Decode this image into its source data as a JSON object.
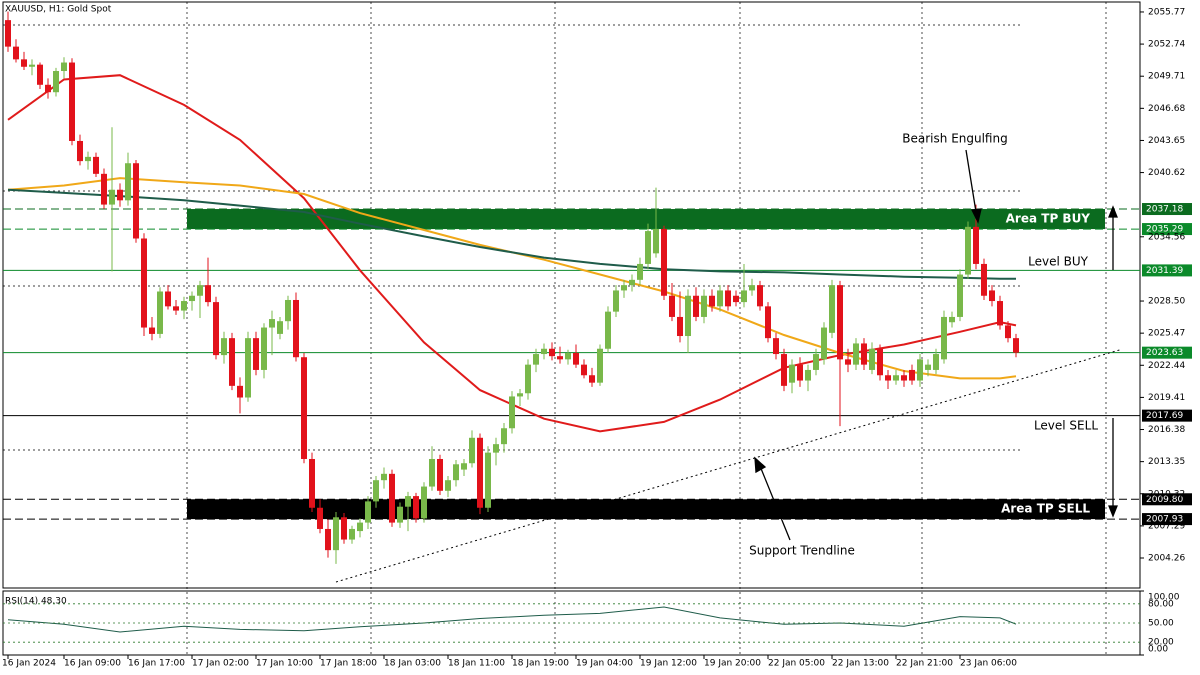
{
  "chart_data": {
    "type": "candlestick",
    "title": "XAUUSD, H1:  Gold Spot",
    "up_color": "#79b84a",
    "down_color": "#e2121b",
    "categories": [
      "16 Jan 2024",
      null,
      null,
      null,
      null,
      null,
      null,
      "16 Jan 09:00",
      null,
      null,
      null,
      null,
      null,
      null,
      null,
      "16 Jan 17:00",
      null,
      null,
      null,
      null,
      null,
      null,
      null,
      "17 Jan 02:00",
      null,
      null,
      null,
      null,
      null,
      null,
      null,
      "17 Jan 10:00",
      null,
      null,
      null,
      null,
      null,
      null,
      null,
      "17 Jan 18:00",
      null,
      null,
      null,
      null,
      null,
      null,
      null,
      "18 Jan 03:00",
      null,
      null,
      null,
      null,
      null,
      null,
      null,
      "18 Jan 11:00",
      null,
      null,
      null,
      null,
      null,
      null,
      null,
      "18 Jan 19:00",
      null,
      null,
      null,
      null,
      null,
      null,
      null,
      "19 Jan 04:00",
      null,
      null,
      null,
      null,
      null,
      null,
      null,
      "19 Jan 12:00",
      null,
      null,
      null,
      null,
      null,
      null,
      null,
      "19 Jan 20:00",
      null,
      null,
      null,
      null,
      null,
      null,
      null,
      "22 Jan 05:00",
      null,
      null,
      null,
      null,
      null,
      null,
      null,
      "22 Jan 13:00",
      null,
      null,
      null,
      null,
      null,
      null,
      null,
      "22 Jan 21:00",
      null,
      null,
      null,
      null,
      null,
      null,
      null,
      "23 Jan 06:00",
      null,
      null,
      null,
      null,
      null,
      null,
      null
    ],
    "ohlc": [
      [
        2055.0,
        2055.8,
        2052.0,
        2052.5
      ],
      [
        2052.5,
        2053.2,
        2051.0,
        2051.3
      ],
      [
        2051.3,
        2052.0,
        2050.3,
        2050.6
      ],
      [
        2050.6,
        2051.3,
        2049.8,
        2050.8
      ],
      [
        2050.8,
        2051.0,
        2048.5,
        2048.9
      ],
      [
        2048.9,
        2049.5,
        2047.6,
        2048.2
      ],
      [
        2048.2,
        2050.5,
        2047.8,
        2050.2
      ],
      [
        2050.2,
        2051.5,
        2049.5,
        2051.0
      ],
      [
        2051.0,
        2051.4,
        2043.2,
        2043.6
      ],
      [
        2043.6,
        2044.2,
        2041.3,
        2041.7
      ],
      [
        2041.7,
        2042.6,
        2040.9,
        2042.1
      ],
      [
        2042.1,
        2042.5,
        2040.2,
        2040.5
      ],
      [
        2040.5,
        2041.0,
        2037.2,
        2037.6
      ],
      [
        2037.6,
        2044.9,
        2031.3,
        2039.0
      ],
      [
        2039.0,
        2039.6,
        2037.4,
        2038.0
      ],
      [
        2038.0,
        2042.5,
        2037.5,
        2041.5
      ],
      [
        2041.5,
        2041.8,
        2034.0,
        2034.4
      ],
      [
        2034.4,
        2034.9,
        2025.2,
        2026.0
      ],
      [
        2026.0,
        2027.0,
        2024.8,
        2025.4
      ],
      [
        2025.4,
        2029.8,
        2025.0,
        2029.4
      ],
      [
        2029.4,
        2030.0,
        2027.7,
        2028.0
      ],
      [
        2028.0,
        2028.6,
        2027.2,
        2027.6
      ],
      [
        2027.6,
        2028.9,
        2026.8,
        2028.5
      ],
      [
        2028.5,
        2029.4,
        2027.6,
        2029.0
      ],
      [
        2029.0,
        2030.4,
        2026.9,
        2030.0
      ],
      [
        2030.0,
        2032.6,
        2028.0,
        2028.4
      ],
      [
        2028.4,
        2028.9,
        2023.0,
        2023.4
      ],
      [
        2023.4,
        2025.6,
        2022.6,
        2025.0
      ],
      [
        2025.0,
        2025.5,
        2020.1,
        2020.5
      ],
      [
        2020.5,
        2021.3,
        2017.9,
        2019.4
      ],
      [
        2019.4,
        2025.6,
        2019.0,
        2025.0
      ],
      [
        2025.0,
        2025.6,
        2021.5,
        2022.0
      ],
      [
        2022.0,
        2026.4,
        2021.2,
        2026.0
      ],
      [
        2026.0,
        2027.6,
        2023.4,
        2026.8
      ],
      [
        2025.4,
        2027.0,
        2024.9,
        2026.6
      ],
      [
        2026.6,
        2029.0,
        2025.8,
        2028.6
      ],
      [
        2028.6,
        2029.3,
        2022.8,
        2023.2
      ],
      [
        2023.2,
        2023.6,
        2013.2,
        2013.6
      ],
      [
        2013.6,
        2014.2,
        2008.6,
        2009.0
      ],
      [
        2009.0,
        2009.8,
        2006.6,
        2007.0
      ],
      [
        2007.0,
        2007.9,
        2004.3,
        2005.0
      ],
      [
        2005.0,
        2008.6,
        2003.7,
        2008.1
      ],
      [
        2008.1,
        2008.5,
        2005.6,
        2006.0
      ],
      [
        2006.0,
        2007.3,
        2005.6,
        2007.0
      ],
      [
        2006.8,
        2008.0,
        2006.2,
        2007.6
      ],
      [
        2007.6,
        2010.1,
        2007.0,
        2009.6
      ],
      [
        2009.6,
        2012.0,
        2009.0,
        2011.6
      ],
      [
        2011.6,
        2012.8,
        2010.8,
        2012.2
      ],
      [
        2012.2,
        2012.6,
        2007.2,
        2007.6
      ],
      [
        2007.6,
        2009.5,
        2007.1,
        2009.1
      ],
      [
        2009.1,
        2010.5,
        2006.8,
        2010.1
      ],
      [
        2010.1,
        2010.4,
        2007.6,
        2008.0
      ],
      [
        2008.0,
        2011.4,
        2007.6,
        2011.0
      ],
      [
        2011.0,
        2014.8,
        2010.6,
        2013.6
      ],
      [
        2013.6,
        2014.0,
        2010.2,
        2010.6
      ],
      [
        2010.6,
        2012.0,
        2010.0,
        2011.6
      ],
      [
        2011.6,
        2013.5,
        2011.0,
        2013.1
      ],
      [
        2012.6,
        2013.6,
        2012.0,
        2013.2
      ],
      [
        2013.2,
        2016.3,
        2012.8,
        2015.6
      ],
      [
        2015.6,
        2016.0,
        2008.4,
        2009.0
      ],
      [
        2009.0,
        2014.8,
        2008.6,
        2014.2
      ],
      [
        2014.2,
        2015.6,
        2013.0,
        2015.0
      ],
      [
        2015.0,
        2017.0,
        2014.2,
        2016.5
      ],
      [
        2016.5,
        2020.0,
        2016.0,
        2019.5
      ],
      [
        2019.5,
        2020.2,
        2018.6,
        2019.8
      ],
      [
        2019.8,
        2023.0,
        2019.2,
        2022.5
      ],
      [
        2022.5,
        2024.0,
        2021.8,
        2023.5
      ],
      [
        2023.5,
        2024.5,
        2023.0,
        2024.0
      ],
      [
        2024.0,
        2024.6,
        2022.9,
        2023.3
      ],
      [
        2023.3,
        2024.2,
        2022.6,
        2023.0
      ],
      [
        2023.0,
        2023.9,
        2022.5,
        2023.6
      ],
      [
        2023.6,
        2024.4,
        2022.2,
        2022.5
      ],
      [
        2022.5,
        2023.0,
        2021.2,
        2021.5
      ],
      [
        2021.5,
        2022.2,
        2020.4,
        2020.8
      ],
      [
        2020.8,
        2024.4,
        2020.5,
        2024.0
      ],
      [
        2024.0,
        2028.0,
        2023.6,
        2027.5
      ],
      [
        2027.5,
        2030.0,
        2027.0,
        2029.5
      ],
      [
        2029.5,
        2030.5,
        2028.8,
        2030.0
      ],
      [
        2030.0,
        2031.0,
        2029.4,
        2030.5
      ],
      [
        2030.5,
        2032.6,
        2030.0,
        2032.0
      ],
      [
        2032.0,
        2035.8,
        2031.5,
        2035.1
      ],
      [
        2033.0,
        2039.2,
        2032.6,
        2035.3
      ],
      [
        2035.3,
        2035.6,
        2028.6,
        2029.0
      ],
      [
        2029.0,
        2030.2,
        2026.6,
        2027.0
      ],
      [
        2027.0,
        2029.4,
        2024.6,
        2025.2
      ],
      [
        2025.2,
        2029.6,
        2023.6,
        2029.0
      ],
      [
        2029.0,
        2029.8,
        2026.6,
        2027.0
      ],
      [
        2027.0,
        2029.6,
        2026.4,
        2029.0
      ],
      [
        2029.0,
        2029.6,
        2027.5,
        2028.0
      ],
      [
        2028.0,
        2030.0,
        2027.5,
        2029.5
      ],
      [
        2029.5,
        2030.0,
        2027.6,
        2028.0
      ],
      [
        2029.0,
        2029.5,
        2028.0,
        2028.4
      ],
      [
        2028.4,
        2032.0,
        2027.9,
        2029.5
      ],
      [
        2029.5,
        2030.6,
        2029.0,
        2030.0
      ],
      [
        2030.0,
        2030.4,
        2027.6,
        2028.0
      ],
      [
        2028.0,
        2028.4,
        2024.6,
        2025.0
      ],
      [
        2025.0,
        2025.5,
        2023.0,
        2023.5
      ],
      [
        2023.5,
        2024.0,
        2020.0,
        2020.5
      ],
      [
        2020.8,
        2023.0,
        2019.8,
        2022.5
      ],
      [
        2022.5,
        2023.2,
        2020.4,
        2021.0
      ],
      [
        2021.0,
        2022.5,
        2020.0,
        2022.0
      ],
      [
        2022.0,
        2024.0,
        2021.5,
        2023.5
      ],
      [
        2023.0,
        2026.5,
        2022.5,
        2026.0
      ],
      [
        2025.5,
        2030.5,
        2025.0,
        2030.0
      ],
      [
        2030.0,
        2030.4,
        2016.7,
        2023.0
      ],
      [
        2023.0,
        2024.0,
        2021.8,
        2022.5
      ],
      [
        2022.5,
        2025.0,
        2022.0,
        2024.5
      ],
      [
        2024.5,
        2025.0,
        2022.0,
        2022.5
      ],
      [
        2022.0,
        2024.6,
        2021.6,
        2024.0
      ],
      [
        2024.0,
        2024.4,
        2021.0,
        2021.5
      ],
      [
        2021.5,
        2022.0,
        2020.2,
        2021.0
      ],
      [
        2021.0,
        2022.0,
        2020.6,
        2021.5
      ],
      [
        2021.5,
        2022.0,
        2020.4,
        2021.0
      ],
      [
        2022.0,
        2022.5,
        2020.6,
        2021.0
      ],
      [
        2021.0,
        2023.5,
        2020.4,
        2023.0
      ],
      [
        2022.0,
        2023.0,
        2021.4,
        2022.5
      ],
      [
        2022.0,
        2024.0,
        2021.6,
        2023.5
      ],
      [
        2023.0,
        2027.6,
        2022.6,
        2027.0
      ],
      [
        2026.5,
        2027.5,
        2026.0,
        2027.0
      ],
      [
        2027.0,
        2031.5,
        2026.6,
        2031.0
      ],
      [
        2031.0,
        2036.0,
        2030.6,
        2035.5
      ],
      [
        2035.5,
        2037.6,
        2031.5,
        2032.0
      ],
      [
        2032.0,
        2032.5,
        2028.6,
        2029.0
      ],
      [
        2029.5,
        2030.0,
        2028.0,
        2028.5
      ],
      [
        2028.5,
        2029.0,
        2025.8,
        2026.2
      ],
      [
        2026.2,
        2026.6,
        2024.6,
        2025.0
      ],
      [
        2025.0,
        2025.4,
        2023.2,
        2023.63
      ]
    ],
    "xlim": [
      -0.625,
      141.5
    ],
    "ylim": [
      2001.43,
      2056.71
    ],
    "yticks": [
      2055.77,
      2052.74,
      2049.71,
      2046.68,
      2043.65,
      2040.62,
      2034.56,
      {
        "value": 2028.5,
        "label": "2028.50"
      },
      2025.47,
      2022.44,
      2019.41,
      2016.38,
      2013.35,
      2010.32,
      2007.29,
      2004.26
    ],
    "series": [
      {
        "color": "#e01b1b",
        "x": [
          0,
          7,
          14,
          22,
          29,
          37,
          44,
          52,
          59,
          67,
          74,
          82,
          89,
          97,
          104,
          112,
          119,
          124,
          126
        ],
        "values": [
          2045.6,
          2049.4,
          2049.8,
          2047.0,
          2043.7,
          2038.2,
          2031.4,
          2024.6,
          2020.1,
          2017.4,
          2016.2,
          2017.1,
          2019.2,
          2022.2,
          2023.4,
          2024.4,
          2025.6,
          2026.5,
          2026.2
        ]
      },
      {
        "color": "#f0a818",
        "x": [
          0,
          7,
          14,
          22,
          29,
          37,
          44,
          52,
          59,
          67,
          74,
          82,
          89,
          97,
          104,
          112,
          119,
          124,
          126
        ],
        "values": [
          2039.0,
          2039.4,
          2040.1,
          2039.7,
          2039.4,
          2038.6,
          2036.8,
          2035.2,
          2033.8,
          2032.4,
          2031.0,
          2029.4,
          2027.7,
          2025.3,
          2023.6,
          2021.9,
          2021.2,
          2021.2,
          2021.4
        ]
      },
      {
        "color": "#1f5c4a",
        "x": [
          0,
          7,
          14,
          22,
          29,
          37,
          44,
          52,
          59,
          67,
          74,
          82,
          89,
          97,
          104,
          112,
          119,
          124,
          126
        ],
        "values": [
          2039.0,
          2038.7,
          2038.4,
          2038.0,
          2037.5,
          2036.9,
          2035.8,
          2034.6,
          2033.6,
          2032.6,
          2032.0,
          2031.5,
          2031.3,
          2031.2,
          2031.0,
          2030.8,
          2030.7,
          2030.6,
          2030.6
        ]
      }
    ],
    "levels": {
      "values": [
        2037.18,
        2035.29,
        2031.39,
        2023.63,
        2017.69,
        2009.8,
        2007.93
      ],
      "value_labels": [
        "2037.18",
        "2035.29",
        "2031.39",
        "2023.63",
        "2017.69",
        "2009.80",
        "2007.93"
      ],
      "colors": [
        "#0b6b1f",
        "#0b8a2a",
        "#0b8a2a",
        "#0b8a2a",
        "#000000",
        "#000000",
        "#000000"
      ],
      "styles": [
        "dashed",
        "dashed",
        "solid",
        "solid",
        "solid",
        "dashed",
        "dashed"
      ]
    },
    "areas": [
      {
        "label": "Area TP BUY",
        "from": 2035.29,
        "to": 2037.18,
        "color": "#0b6b1f"
      },
      {
        "label": "Area TP SELL",
        "from": 2007.93,
        "to": 2009.8,
        "color": "#000000"
      }
    ],
    "trendline": {
      "x": [
        41,
        139
      ],
      "values": [
        2002.0,
        2023.9
      ]
    },
    "annotations": [
      "Bearish Engulfing",
      "Level BUY",
      "Level SELL",
      "Support Trendline"
    ],
    "rsi": {
      "label": "RSI(14) 48.30",
      "color": "#1f5c4a",
      "ylim": [
        0,
        100
      ],
      "yticks": [
        {
          "value": 100,
          "label": "100.00"
        },
        {
          "value": 80,
          "label": "80.00"
        },
        {
          "value": 50,
          "label": "50.00"
        },
        {
          "value": 20,
          "label": "20.00"
        },
        {
          "value": 0,
          "label": "0.00"
        }
      ],
      "x": [
        0,
        7,
        14,
        22,
        29,
        37,
        44,
        52,
        59,
        67,
        74,
        82,
        89,
        97,
        104,
        112,
        119,
        124,
        126
      ],
      "values": [
        55,
        48,
        36,
        45,
        40,
        38,
        44,
        50,
        57,
        62,
        65,
        75,
        58,
        48,
        50,
        45,
        60,
        58,
        48.3
      ]
    }
  }
}
